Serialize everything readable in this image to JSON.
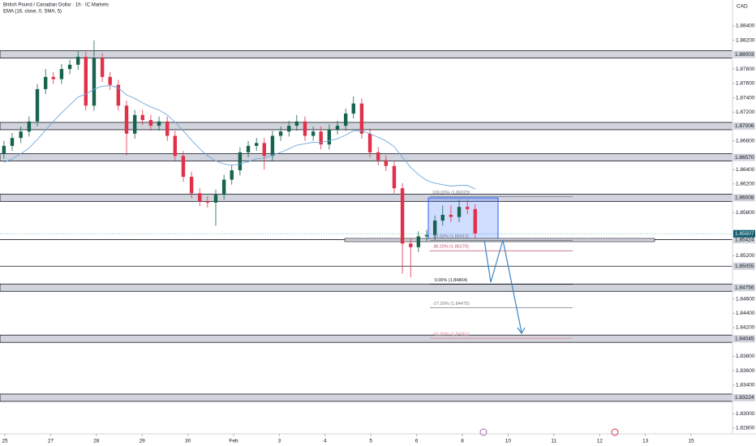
{
  "chart_data": {
    "type": "candlestick",
    "title": "British Pound / Canadian Dollar · 1h · IC Markets",
    "indicator": "EMA (16, close, 0, SMA, 5)",
    "currency": "CAD",
    "up_color": "#17634f",
    "down_color": "#e0304a",
    "ema_color": "#6fa8dc",
    "xlim": [
      -0.106,
      15.904
    ],
    "ylim": [
      1.82721,
      1.88761
    ],
    "xticks": [
      {
        "value": 0,
        "label": "25"
      },
      {
        "value": 1,
        "label": "27"
      },
      {
        "value": 2,
        "label": "28"
      },
      {
        "value": 3,
        "label": "29"
      },
      {
        "value": 4,
        "label": "30"
      },
      {
        "value": 5,
        "label": "Feb"
      },
      {
        "value": 6,
        "label": "3"
      },
      {
        "value": 7,
        "label": "4"
      },
      {
        "value": 8,
        "label": "5"
      },
      {
        "value": 9,
        "label": "6"
      },
      {
        "value": 10,
        "label": "8"
      },
      {
        "value": 11,
        "label": "10"
      },
      {
        "value": 12,
        "label": "11"
      },
      {
        "value": 13,
        "label": "12"
      },
      {
        "value": 14,
        "label": "13"
      },
      {
        "value": 15,
        "label": "15"
      }
    ],
    "yticks": [
      {
        "value": 1.884,
        "label": "1.88400"
      },
      {
        "value": 1.882,
        "label": "1.88200"
      },
      {
        "value": 1.878,
        "label": "1.87800"
      },
      {
        "value": 1.876,
        "label": "1.87600"
      },
      {
        "value": 1.874,
        "label": "1.87400"
      },
      {
        "value": 1.872,
        "label": "1.87200"
      },
      {
        "value": 1.868,
        "label": "1.86800"
      },
      {
        "value": 1.864,
        "label": "1.86400"
      },
      {
        "value": 1.862,
        "label": "1.86200"
      },
      {
        "value": 1.858,
        "label": "1.85800"
      },
      {
        "value": 1.852,
        "label": "1.85200"
      },
      {
        "value": 1.846,
        "label": "1.84600"
      },
      {
        "value": 1.844,
        "label": "1.84400"
      },
      {
        "value": 1.842,
        "label": "1.84200"
      },
      {
        "value": 1.838,
        "label": "1.83800"
      },
      {
        "value": 1.836,
        "label": "1.83600"
      },
      {
        "value": 1.834,
        "label": "1.83400"
      },
      {
        "value": 1.83,
        "label": "1.83000"
      },
      {
        "value": 1.828,
        "label": "1.82800"
      }
    ],
    "x": [
      -0.02,
      0.16,
      0.35,
      0.53,
      0.71,
      0.89,
      1.06,
      1.24,
      1.42,
      1.6,
      1.77,
      1.95,
      2.13,
      2.3,
      2.48,
      2.66,
      2.84,
      3.01,
      3.19,
      3.37,
      3.55,
      3.72,
      3.9,
      4.08,
      4.26,
      4.43,
      4.61,
      4.79,
      4.96,
      5.14,
      5.32,
      5.5,
      5.67,
      5.85,
      6.03,
      6.21,
      6.38,
      6.56,
      6.74,
      6.91,
      7.09,
      7.27,
      7.45,
      7.62,
      7.8,
      7.98,
      8.16,
      8.33,
      8.51,
      8.69,
      8.87,
      9.04,
      9.22,
      9.4,
      9.57,
      9.75,
      9.93,
      10.11,
      10.28
    ],
    "open": [
      1.8662,
      1.8673,
      1.8684,
      1.8693,
      1.8707,
      1.8752,
      1.8769,
      1.8766,
      1.878,
      1.8786,
      1.8797,
      1.8729,
      1.8795,
      1.8769,
      1.8758,
      1.8729,
      1.869,
      1.8716,
      1.8709,
      1.8701,
      1.8707,
      1.8687,
      1.8659,
      1.863,
      1.8607,
      1.8596,
      1.8594,
      1.8605,
      1.8626,
      1.8639,
      1.8664,
      1.8673,
      1.8677,
      1.8659,
      1.8687,
      1.8693,
      1.8701,
      1.8707,
      1.8687,
      1.8693,
      1.8675,
      1.8696,
      1.8701,
      1.8718,
      1.8732,
      1.869,
      1.8664,
      1.8653,
      1.8645,
      1.8614,
      1.8537,
      1.8532,
      1.8547,
      1.8549,
      1.8569,
      1.8577,
      1.8574,
      1.8588,
      1.8585
    ],
    "high": [
      1.868,
      1.8691,
      1.87,
      1.8714,
      1.8759,
      1.878,
      1.8776,
      1.8787,
      1.8793,
      1.8805,
      1.8804,
      1.882,
      1.8802,
      1.8776,
      1.8765,
      1.8736,
      1.8723,
      1.8723,
      1.8716,
      1.8714,
      1.8714,
      1.8694,
      1.8666,
      1.8637,
      1.8614,
      1.8603,
      1.8612,
      1.8633,
      1.8646,
      1.8671,
      1.868,
      1.8684,
      1.8684,
      1.8694,
      1.87,
      1.8708,
      1.8716,
      1.8714,
      1.87,
      1.87,
      1.8703,
      1.8708,
      1.8725,
      1.8742,
      1.8739,
      1.8697,
      1.8671,
      1.866,
      1.8652,
      1.8621,
      1.8544,
      1.8554,
      1.8556,
      1.8576,
      1.859,
      1.859,
      1.8598,
      1.8598,
      1.8592
    ],
    "low": [
      1.8655,
      1.8666,
      1.8677,
      1.8686,
      1.87,
      1.8745,
      1.8759,
      1.8759,
      1.8773,
      1.8779,
      1.8722,
      1.8722,
      1.8762,
      1.8751,
      1.8722,
      1.866,
      1.8683,
      1.8702,
      1.8694,
      1.8694,
      1.868,
      1.8652,
      1.8623,
      1.86,
      1.8589,
      1.8587,
      1.8562,
      1.8598,
      1.8619,
      1.8632,
      1.8657,
      1.8666,
      1.864,
      1.8652,
      1.868,
      1.8686,
      1.8694,
      1.868,
      1.868,
      1.8668,
      1.8668,
      1.8689,
      1.8694,
      1.8711,
      1.8683,
      1.8657,
      1.8646,
      1.8638,
      1.8607,
      1.8495,
      1.849,
      1.8525,
      1.854,
      1.8542,
      1.8562,
      1.8567,
      1.8567,
      1.8578,
      1.8544
    ],
    "close": [
      1.8673,
      1.8684,
      1.8693,
      1.8707,
      1.8752,
      1.8769,
      1.8766,
      1.878,
      1.8786,
      1.8797,
      1.8729,
      1.8795,
      1.8769,
      1.8758,
      1.8729,
      1.869,
      1.8716,
      1.8709,
      1.8701,
      1.8707,
      1.8687,
      1.8659,
      1.863,
      1.8607,
      1.8596,
      1.8594,
      1.8605,
      1.8626,
      1.8639,
      1.8664,
      1.8673,
      1.8677,
      1.8659,
      1.8687,
      1.8693,
      1.8701,
      1.8707,
      1.8687,
      1.8693,
      1.8675,
      1.8696,
      1.8701,
      1.8718,
      1.8732,
      1.869,
      1.8664,
      1.8653,
      1.8645,
      1.8614,
      1.8537,
      1.8532,
      1.8547,
      1.8549,
      1.8569,
      1.8577,
      1.8574,
      1.8588,
      1.8585,
      1.8551
    ],
    "ema": [
      1.865,
      1.8655,
      1.8662,
      1.867,
      1.8682,
      1.8695,
      1.8707,
      1.8719,
      1.873,
      1.8741,
      1.8745,
      1.8752,
      1.8756,
      1.8757,
      1.8754,
      1.8744,
      1.8739,
      1.8733,
      1.8727,
      1.8723,
      1.8716,
      1.8706,
      1.8694,
      1.8681,
      1.8669,
      1.8659,
      1.8652,
      1.8648,
      1.8646,
      1.8648,
      1.8651,
      1.8655,
      1.8656,
      1.866,
      1.8664,
      1.8669,
      1.8674,
      1.8676,
      1.8678,
      1.8678,
      1.868,
      1.8683,
      1.8688,
      1.8694,
      1.8694,
      1.869,
      1.8685,
      1.868,
      1.8672,
      1.8657,
      1.8643,
      1.8633,
      1.8625,
      1.8621,
      1.8619,
      1.8617,
      1.8618,
      1.8618,
      1.8613
    ],
    "zones": [
      1.88003,
      1.87006,
      {
        "value": 1.8657,
        "label": "1.86570"
      },
      1.86008,
      1.84756,
      1.84045,
      1.83224
    ],
    "lines": [
      1.85424,
      1.85055
    ],
    "last_price": 1.85507,
    "fib_levels": [
      {
        "label": "100.00% (1.86023)",
        "value": 1.86023,
        "color": "#787b86"
      },
      {
        "label": "50.00% (1.85413)",
        "value": 1.85413,
        "color": "#787b86"
      },
      {
        "label": "38.20% (1.85270)",
        "value": 1.8527,
        "color": "#c0506b"
      },
      {
        "label": "0.00% (1.84804)",
        "value": 1.84804,
        "color": "#131722"
      },
      {
        "label": "-27.00% (1.84475)",
        "value": 1.84475,
        "color": "#787b86"
      },
      {
        "label": "-61.80% (1.84051)",
        "value": 1.84051,
        "color": "#e88aa0"
      }
    ]
  }
}
